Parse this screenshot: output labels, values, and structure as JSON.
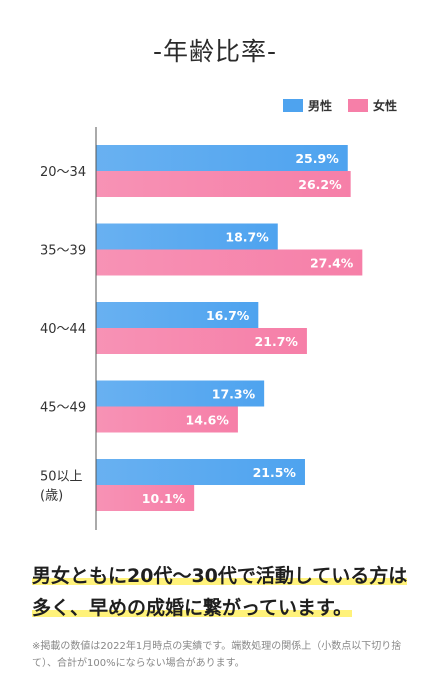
{
  "title": "-年齢比率-",
  "chart_data": {
    "type": "bar",
    "orientation": "horizontal",
    "categories": [
      [
        "20～34"
      ],
      [
        "35～39"
      ],
      [
        "40～44"
      ],
      [
        "45～49"
      ],
      [
        "50以上",
        "(歳)"
      ]
    ],
    "series": [
      {
        "name": "男性",
        "color": "#4ea3ef",
        "values": [
          25.9,
          18.7,
          16.7,
          17.3,
          21.5
        ],
        "labels": [
          "25.9%",
          "18.7%",
          "16.7%",
          "17.3%",
          "21.5%"
        ]
      },
      {
        "name": "女性",
        "color": "#f67fa8",
        "values": [
          26.2,
          27.4,
          21.7,
          14.6,
          10.1
        ],
        "labels": [
          "26.2%",
          "27.4%",
          "21.7%",
          "14.6%",
          "10.1%"
        ]
      }
    ],
    "xlim": [
      0,
      30
    ],
    "legend_position": "top-right",
    "grid": false
  },
  "caption": {
    "line1": "男女ともに20代～30代で活動している方は",
    "line2": "多く、早めの成婚に繋がっています。"
  },
  "note": "※掲載の数値は2022年1月時点の実績です。端数処理の関係上（小数点以下切り捨て）、合計が100%にならない場合があります。"
}
